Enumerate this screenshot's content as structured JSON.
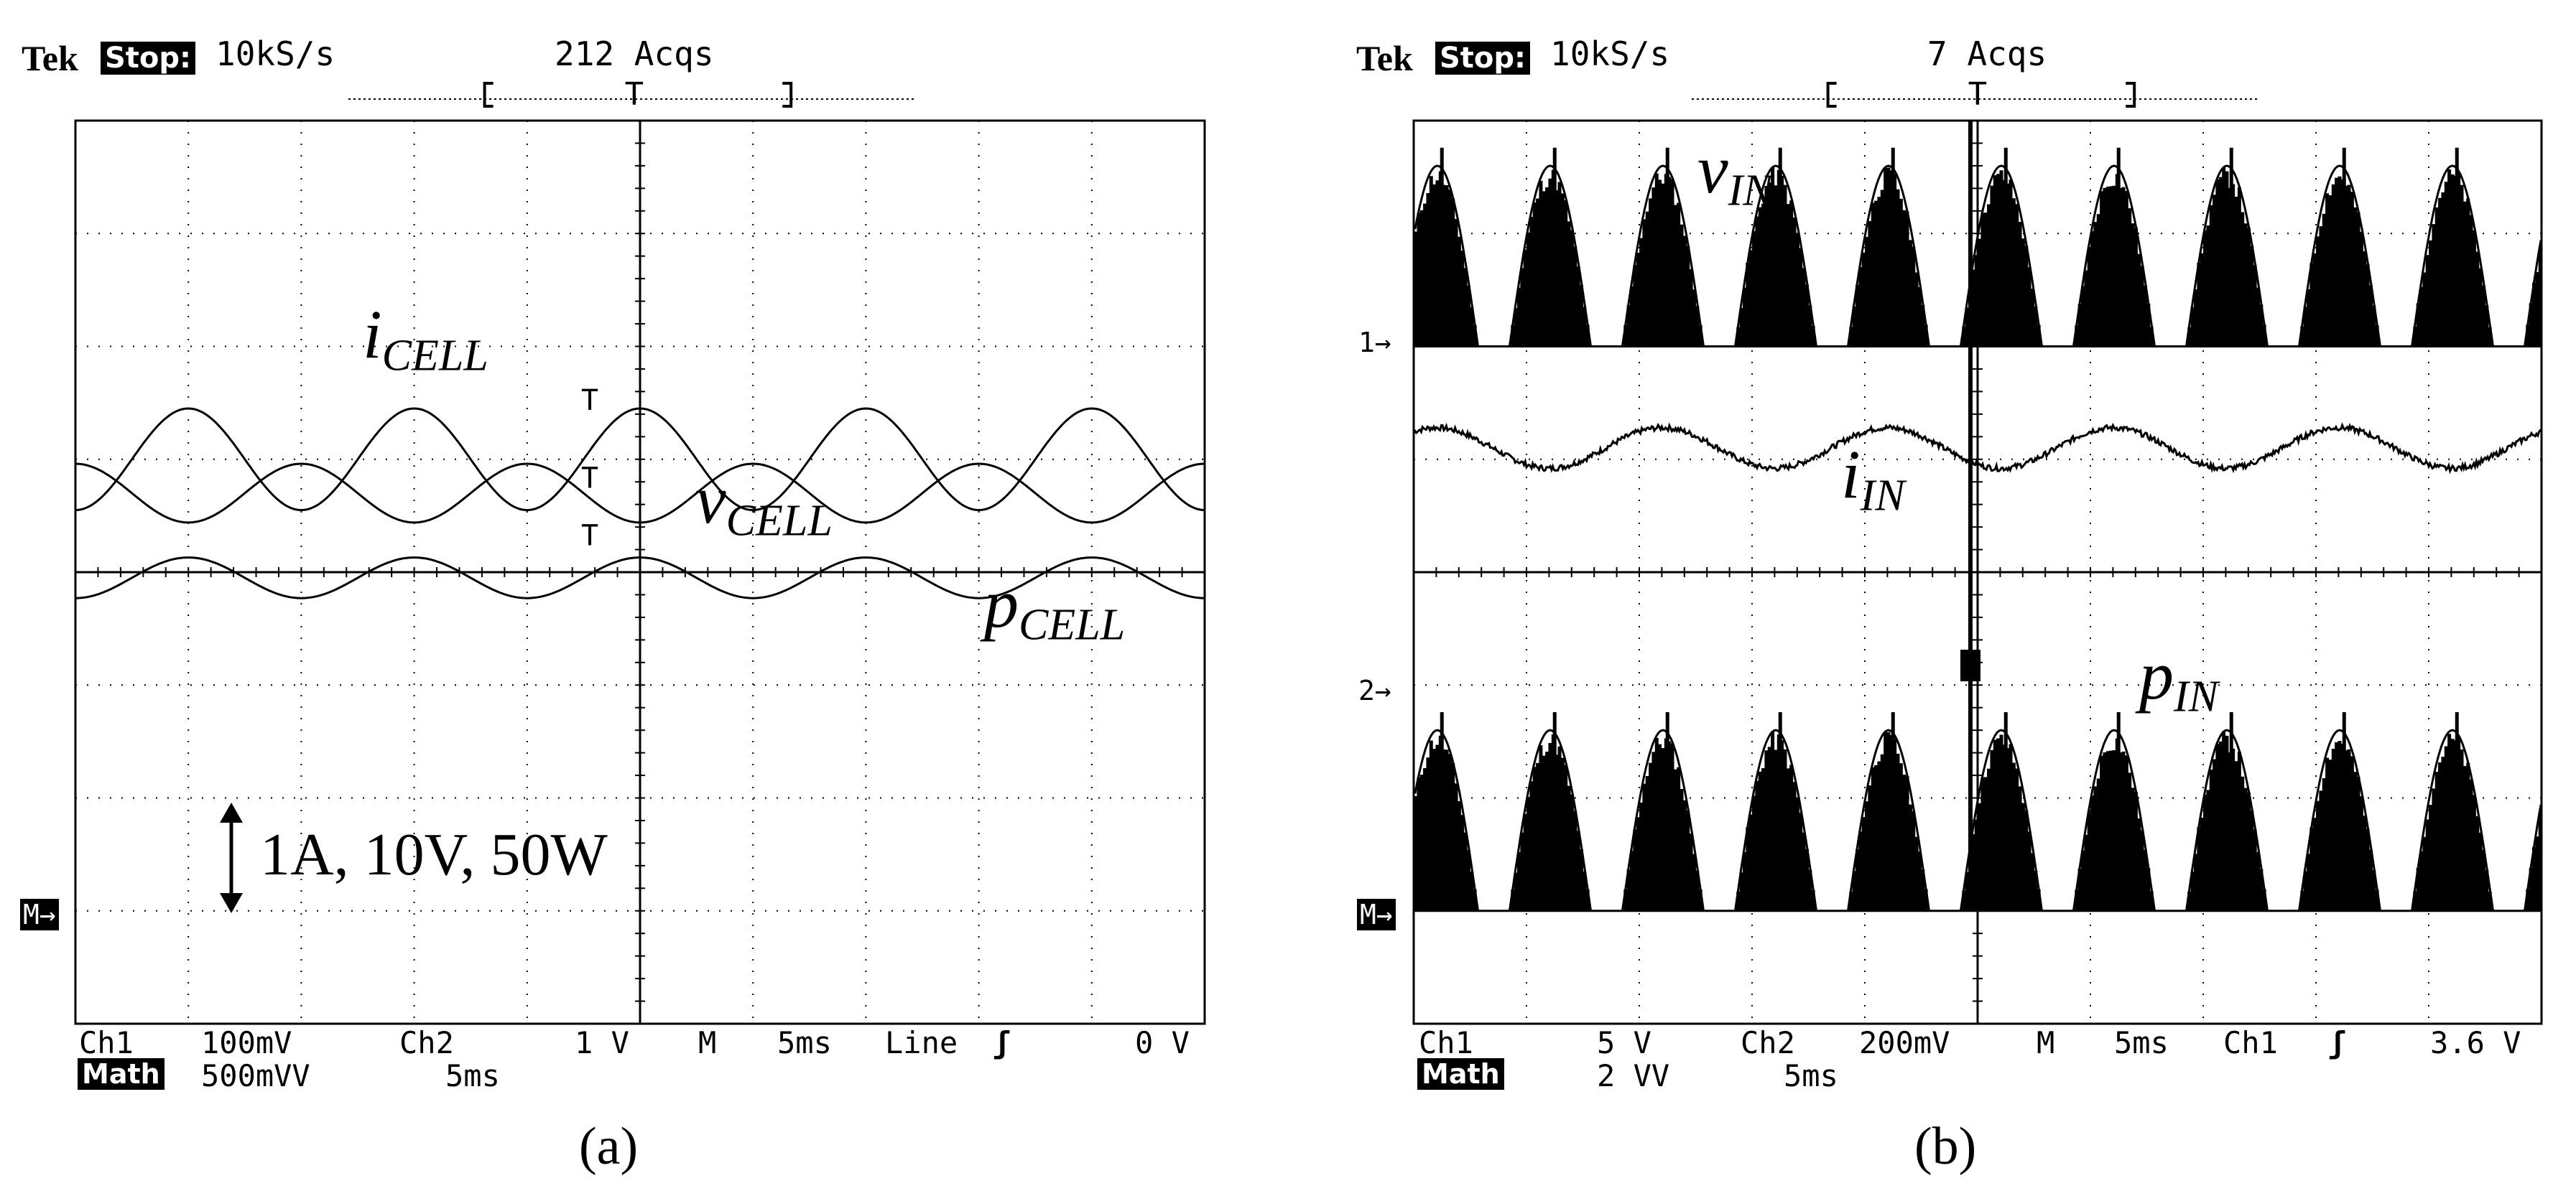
{
  "chart_data": [
    {
      "type": "line",
      "panel": "(a)",
      "header": {
        "brand": "Tek",
        "state": "Stop:",
        "rate": "10kS/s",
        "acqs": "212 Acqs",
        "trigger_box": "[ T ]"
      },
      "x": {
        "divisions": 10,
        "per_div": "5ms"
      },
      "y": {
        "divisions": 8
      },
      "grid": true,
      "series": [
        {
          "name": "i_CELL",
          "shape": "sine",
          "center_div": 5.0,
          "amplitude_div": 0.45,
          "period_div": 2.0,
          "phase_div": 1.0
        },
        {
          "name": "v_CELL",
          "shape": "sine",
          "center_div": 4.7,
          "amplitude_div": 0.26,
          "period_div": 2.0,
          "phase_div": 0.0
        },
        {
          "name": "p_CELL",
          "shape": "sine",
          "center_div": 3.95,
          "amplitude_div": 0.18,
          "period_div": 2.0,
          "phase_div": 1.0
        }
      ],
      "labels": {
        "i": {
          "main": "i",
          "sub": "CELL"
        },
        "v": {
          "main": "v",
          "sub": "CELL"
        },
        "p": {
          "main": "p",
          "sub": "CELL"
        },
        "scale": "1A, 10V, 50W",
        "math_ref": "M→"
      },
      "footer": {
        "ch1": "Ch1",
        "ch1_scale": "100mV",
        "ch2": "Ch2",
        "ch2_scale": "1 V",
        "m": "M",
        "m_time": "5ms",
        "trig_src": "Line",
        "trig_slope": "ʃ",
        "trig_level": "0 V",
        "math": "Math",
        "math_scale": "500mVV",
        "math_time": "5ms"
      },
      "caption": "(a)"
    },
    {
      "type": "line",
      "panel": "(b)",
      "header": {
        "brand": "Tek",
        "state": "Stop:",
        "rate": "10kS/s",
        "acqs": "7 Acqs",
        "trigger_box": "[ T ]"
      },
      "x": {
        "divisions": 10,
        "per_div": "5ms"
      },
      "y": {
        "divisions": 8
      },
      "grid": true,
      "series": [
        {
          "name": "v_IN",
          "shape": "chopped rectified sine",
          "baseline_div": 6.0,
          "peak_div": 1.6,
          "period_div": 2.0
        },
        {
          "name": "i_IN",
          "shape": "sine",
          "center_div": 5.1,
          "amplitude_div": 0.18,
          "period_div": 2.0,
          "phase_div": 0.2
        },
        {
          "name": "p_IN",
          "shape": "chopped rectified sine",
          "baseline_div": 1.0,
          "peak_div": 1.6,
          "period_div": 2.0
        }
      ],
      "labels": {
        "v": {
          "main": "v",
          "sub": "IN"
        },
        "i": {
          "main": "i",
          "sub": "IN"
        },
        "p": {
          "main": "p",
          "sub": "IN"
        },
        "ch1_marker": "1→",
        "ch2_marker": "2→",
        "math_marker": "M→"
      },
      "footer": {
        "ch1": "Ch1",
        "ch1_scale": "5 V",
        "ch2": "Ch2",
        "ch2_scale": "200mV",
        "m": "M",
        "m_time": "5ms",
        "trig_src": "Ch1",
        "trig_slope": "ʃ",
        "trig_level": "3.6 V",
        "math": "Math",
        "math_scale": "2 VV",
        "math_time": "5ms"
      },
      "caption": "(b)"
    }
  ]
}
